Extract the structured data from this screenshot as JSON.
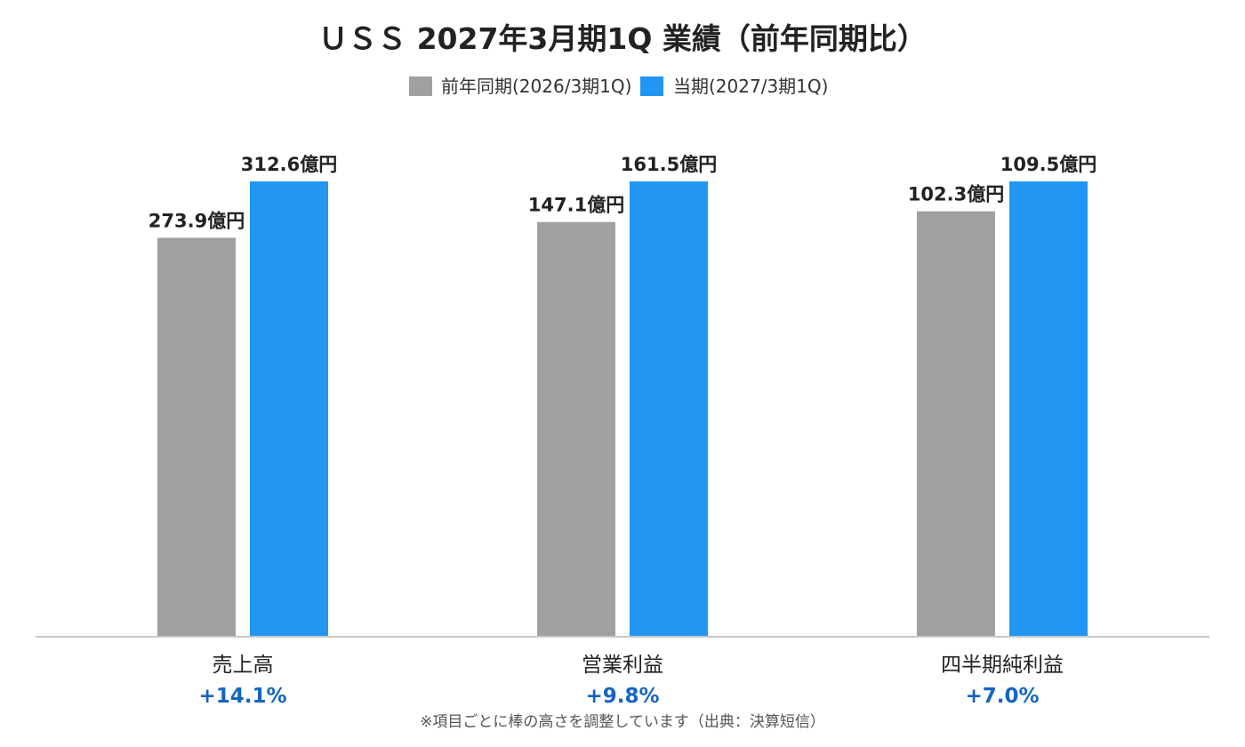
{
  "chart_data": {
    "type": "bar",
    "title": "ＵＳＳ 2027年3月期1Q 業績（前年同期比）",
    "categories": [
      "売上高",
      "営業利益",
      "四半期純利益"
    ],
    "series": [
      {
        "name": "前年同期(2026/3期1Q)",
        "color": "#a0a0a0",
        "values": [
          273.9,
          147.1,
          102.3
        ],
        "labels": [
          "273.9億円",
          "147.1億円",
          "102.3億円"
        ]
      },
      {
        "name": "当期(2027/3期1Q)",
        "color": "#2196f3",
        "values": [
          312.6,
          161.5,
          109.5
        ],
        "labels": [
          "312.6億円",
          "161.5億円",
          "109.5億円"
        ]
      }
    ],
    "growth": [
      "+14.1%",
      "+9.8%",
      "+7.0%"
    ],
    "growth_color": "#1565c0",
    "legend_position": "top-center",
    "grid": false,
    "footnote": "※項目ごとに棒の高さを調整しています（出典：決算短信）"
  }
}
